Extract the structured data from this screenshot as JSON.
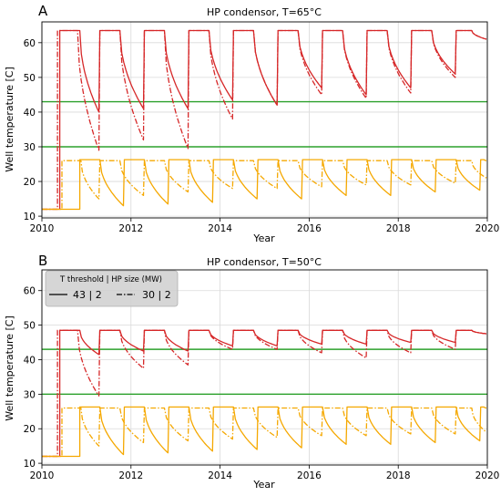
{
  "chart_data": [
    {
      "type": "line",
      "panel_label": "A",
      "title": "HP condensor, T=65°C",
      "xlabel": "Year",
      "ylabel": "Well temperature [C]",
      "xlim": [
        2010,
        2020
      ],
      "ylim": [
        9.5,
        66
      ],
      "xticks": [
        "2010",
        "2012",
        "2014",
        "2016",
        "2018",
        "2020"
      ],
      "yticks": [
        "10",
        "20",
        "30",
        "40",
        "50",
        "60"
      ],
      "grid": true,
      "hlines": [
        {
          "y": 43,
          "color": "#2ca02c"
        },
        {
          "y": 30,
          "color": "#2ca02c"
        }
      ],
      "series": [
        {
          "group": "43 | 2",
          "style": "solid",
          "color": "#d62728",
          "start": {
            "x": 2010.4,
            "from": 12,
            "to": 62.5
          },
          "cycles": [
            {
              "t0": 2010.4,
              "t1": 2011.3,
              "peak": 63.5,
              "low": 40
            },
            {
              "t0": 2011.3,
              "t1": 2012.3,
              "peak": 63.5,
              "low": 41
            },
            {
              "t0": 2012.3,
              "t1": 2013.3,
              "peak": 63.5,
              "low": 41
            },
            {
              "t0": 2013.3,
              "t1": 2014.3,
              "peak": 63.5,
              "low": 43.5
            },
            {
              "t0": 2014.3,
              "t1": 2015.3,
              "peak": 63.5,
              "low": 42
            },
            {
              "t0": 2015.3,
              "t1": 2016.3,
              "peak": 63.5,
              "low": 47
            },
            {
              "t0": 2016.3,
              "t1": 2017.3,
              "peak": 63.5,
              "low": 45
            },
            {
              "t0": 2017.3,
              "t1": 2018.3,
              "peak": 63.5,
              "low": 47
            },
            {
              "t0": 2018.3,
              "t1": 2019.3,
              "peak": 63.5,
              "low": 51
            },
            {
              "t0": 2019.3,
              "t1": 2020.0,
              "peak": 63.5,
              "low": 61
            }
          ]
        },
        {
          "group": "30 | 2",
          "style": "dashdot",
          "color": "#d62728",
          "start": {
            "x": 2010.35,
            "from": 12,
            "to": 62
          },
          "cycles": [
            {
              "t0": 2010.35,
              "t1": 2011.3,
              "peak": 63.5,
              "low": 29
            },
            {
              "t0": 2011.3,
              "t1": 2012.3,
              "peak": 63.5,
              "low": 32
            },
            {
              "t0": 2012.3,
              "t1": 2013.3,
              "peak": 63.5,
              "low": 29.5
            },
            {
              "t0": 2013.3,
              "t1": 2014.3,
              "peak": 63.5,
              "low": 38
            },
            {
              "t0": 2014.3,
              "t1": 2015.3,
              "peak": 63.5,
              "low": 42
            },
            {
              "t0": 2015.3,
              "t1": 2016.3,
              "peak": 63.5,
              "low": 45
            },
            {
              "t0": 2016.3,
              "t1": 2017.3,
              "peak": 63.5,
              "low": 44
            },
            {
              "t0": 2017.3,
              "t1": 2018.3,
              "peak": 63.5,
              "low": 45.5
            },
            {
              "t0": 2018.3,
              "t1": 2019.3,
              "peak": 63.5,
              "low": 50
            },
            {
              "t0": 2019.3,
              "t1": 2020.0,
              "peak": 63.5,
              "low": 61
            }
          ]
        },
        {
          "group": "43 | 2",
          "style": "solid",
          "color": "#f5a800",
          "start": {
            "x": 2010.85,
            "from": 12,
            "to": 26.3
          },
          "cycles": [
            {
              "t0": 2010.85,
              "t1": 2011.85,
              "peak": 26.3,
              "low": 13
            },
            {
              "t0": 2011.85,
              "t1": 2012.85,
              "peak": 26.3,
              "low": 13.5
            },
            {
              "t0": 2012.85,
              "t1": 2013.85,
              "peak": 26.3,
              "low": 14
            },
            {
              "t0": 2013.85,
              "t1": 2014.85,
              "peak": 26.3,
              "low": 15
            },
            {
              "t0": 2014.85,
              "t1": 2015.85,
              "peak": 26.3,
              "low": 15
            },
            {
              "t0": 2015.85,
              "t1": 2016.85,
              "peak": 26.3,
              "low": 16
            },
            {
              "t0": 2016.85,
              "t1": 2017.85,
              "peak": 26.3,
              "low": 16
            },
            {
              "t0": 2017.85,
              "t1": 2018.85,
              "peak": 26.3,
              "low": 17
            },
            {
              "t0": 2018.85,
              "t1": 2019.85,
              "peak": 26.3,
              "low": 17.5
            },
            {
              "t0": 2019.85,
              "t1": 2020.0,
              "peak": 26.3,
              "low": 26
            }
          ]
        },
        {
          "group": "30 | 2",
          "style": "dashdot",
          "color": "#f5a800",
          "start": {
            "x": 2010.45,
            "from": 12,
            "to": 26
          },
          "cycles": [
            {
              "t0": 2010.45,
              "t1": 2011.3,
              "peak": 26,
              "low": 15
            },
            {
              "t0": 2011.3,
              "t1": 2012.3,
              "peak": 26,
              "low": 16
            },
            {
              "t0": 2012.3,
              "t1": 2013.3,
              "peak": 26,
              "low": 17
            },
            {
              "t0": 2013.3,
              "t1": 2014.3,
              "peak": 26,
              "low": 18
            },
            {
              "t0": 2014.3,
              "t1": 2015.3,
              "peak": 26,
              "low": 18
            },
            {
              "t0": 2015.3,
              "t1": 2016.3,
              "peak": 26,
              "low": 18.5
            },
            {
              "t0": 2016.3,
              "t1": 2017.3,
              "peak": 26,
              "low": 19
            },
            {
              "t0": 2017.3,
              "t1": 2018.3,
              "peak": 26,
              "low": 19
            },
            {
              "t0": 2018.3,
              "t1": 2019.3,
              "peak": 26,
              "low": 19.5
            },
            {
              "t0": 2019.3,
              "t1": 2020.0,
              "peak": 26,
              "low": 21
            }
          ]
        }
      ]
    },
    {
      "type": "line",
      "panel_label": "B",
      "title": "HP condensor, T=50°C",
      "xlabel": "Year",
      "ylabel": "Well temperature [C]",
      "xlim": [
        2010,
        2020
      ],
      "ylim": [
        9.5,
        66
      ],
      "xticks": [
        "2010",
        "2012",
        "2014",
        "2016",
        "2018",
        "2020"
      ],
      "yticks": [
        "10",
        "20",
        "30",
        "40",
        "50",
        "60"
      ],
      "grid": true,
      "legend": {
        "position": "top-left",
        "title": "T threshold | HP size (MW)",
        "entries": [
          {
            "label": "43 | 2",
            "style": "solid"
          },
          {
            "label": "30 | 2",
            "style": "dashdot"
          }
        ]
      },
      "hlines": [
        {
          "y": 43,
          "color": "#2ca02c"
        },
        {
          "y": 30,
          "color": "#2ca02c"
        }
      ],
      "series": [
        {
          "group": "43 | 2",
          "style": "solid",
          "color": "#d62728",
          "start": {
            "x": 2010.4,
            "from": 12,
            "to": 48.3
          },
          "cycles": [
            {
              "t0": 2010.4,
              "t1": 2011.3,
              "peak": 48.5,
              "low": 41.5
            },
            {
              "t0": 2011.3,
              "t1": 2012.3,
              "peak": 48.5,
              "low": 42.5
            },
            {
              "t0": 2012.3,
              "t1": 2013.3,
              "peak": 48.5,
              "low": 42.5
            },
            {
              "t0": 2013.3,
              "t1": 2014.3,
              "peak": 48.5,
              "low": 44
            },
            {
              "t0": 2014.3,
              "t1": 2015.3,
              "peak": 48.5,
              "low": 44
            },
            {
              "t0": 2015.3,
              "t1": 2016.3,
              "peak": 48.5,
              "low": 44.5
            },
            {
              "t0": 2016.3,
              "t1": 2017.3,
              "peak": 48.5,
              "low": 44.5
            },
            {
              "t0": 2017.3,
              "t1": 2018.3,
              "peak": 48.5,
              "low": 45
            },
            {
              "t0": 2018.3,
              "t1": 2019.3,
              "peak": 48.5,
              "low": 45
            },
            {
              "t0": 2019.3,
              "t1": 2020.0,
              "peak": 48.5,
              "low": 47.5
            }
          ]
        },
        {
          "group": "30 | 2",
          "style": "dashdot",
          "color": "#d62728",
          "start": {
            "x": 2010.35,
            "from": 12,
            "to": 48
          },
          "cycles": [
            {
              "t0": 2010.35,
              "t1": 2011.3,
              "peak": 48.5,
              "low": 29.5
            },
            {
              "t0": 2011.3,
              "t1": 2012.3,
              "peak": 48.5,
              "low": 37.5
            },
            {
              "t0": 2012.3,
              "t1": 2013.3,
              "peak": 48.5,
              "low": 38.5
            },
            {
              "t0": 2013.3,
              "t1": 2014.3,
              "peak": 48.5,
              "low": 43
            },
            {
              "t0": 2014.3,
              "t1": 2015.3,
              "peak": 48.5,
              "low": 43
            },
            {
              "t0": 2015.3,
              "t1": 2016.3,
              "peak": 48.5,
              "low": 42
            },
            {
              "t0": 2016.3,
              "t1": 2017.3,
              "peak": 48.5,
              "low": 40.5
            },
            {
              "t0": 2017.3,
              "t1": 2018.3,
              "peak": 48.5,
              "low": 42
            },
            {
              "t0": 2018.3,
              "t1": 2019.3,
              "peak": 48.5,
              "low": 43
            },
            {
              "t0": 2019.3,
              "t1": 2020.0,
              "peak": 48.5,
              "low": 47.5
            }
          ]
        },
        {
          "group": "43 | 2",
          "style": "solid",
          "color": "#f5a800",
          "start": {
            "x": 2010.85,
            "from": 12,
            "to": 26.3
          },
          "cycles": [
            {
              "t0": 2010.85,
              "t1": 2011.85,
              "peak": 26.3,
              "low": 12.5
            },
            {
              "t0": 2011.85,
              "t1": 2012.85,
              "peak": 26.3,
              "low": 13
            },
            {
              "t0": 2012.85,
              "t1": 2013.85,
              "peak": 26.3,
              "low": 13.5
            },
            {
              "t0": 2013.85,
              "t1": 2014.85,
              "peak": 26.3,
              "low": 14
            },
            {
              "t0": 2014.85,
              "t1": 2015.85,
              "peak": 26.3,
              "low": 14.5
            },
            {
              "t0": 2015.85,
              "t1": 2016.85,
              "peak": 26.3,
              "low": 15.5
            },
            {
              "t0": 2016.85,
              "t1": 2017.85,
              "peak": 26.3,
              "low": 15.5
            },
            {
              "t0": 2017.85,
              "t1": 2018.85,
              "peak": 26.3,
              "low": 16
            },
            {
              "t0": 2018.85,
              "t1": 2019.85,
              "peak": 26.3,
              "low": 16.5
            },
            {
              "t0": 2019.85,
              "t1": 2020.0,
              "peak": 26.3,
              "low": 26
            }
          ]
        },
        {
          "group": "30 | 2",
          "style": "dashdot",
          "color": "#f5a800",
          "start": {
            "x": 2010.45,
            "from": 12,
            "to": 26
          },
          "cycles": [
            {
              "t0": 2010.45,
              "t1": 2011.3,
              "peak": 26,
              "low": 15
            },
            {
              "t0": 2011.3,
              "t1": 2012.3,
              "peak": 26,
              "low": 16
            },
            {
              "t0": 2012.3,
              "t1": 2013.3,
              "peak": 26,
              "low": 16.5
            },
            {
              "t0": 2013.3,
              "t1": 2014.3,
              "peak": 26,
              "low": 17
            },
            {
              "t0": 2014.3,
              "t1": 2015.3,
              "peak": 26,
              "low": 17.5
            },
            {
              "t0": 2015.3,
              "t1": 2016.3,
              "peak": 26,
              "low": 18
            },
            {
              "t0": 2016.3,
              "t1": 2017.3,
              "peak": 26,
              "low": 18
            },
            {
              "t0": 2017.3,
              "t1": 2018.3,
              "peak": 26,
              "low": 18.5
            },
            {
              "t0": 2018.3,
              "t1": 2019.3,
              "peak": 26,
              "low": 18.5
            },
            {
              "t0": 2019.3,
              "t1": 2020.0,
              "peak": 26,
              "low": 19
            }
          ]
        }
      ]
    }
  ]
}
